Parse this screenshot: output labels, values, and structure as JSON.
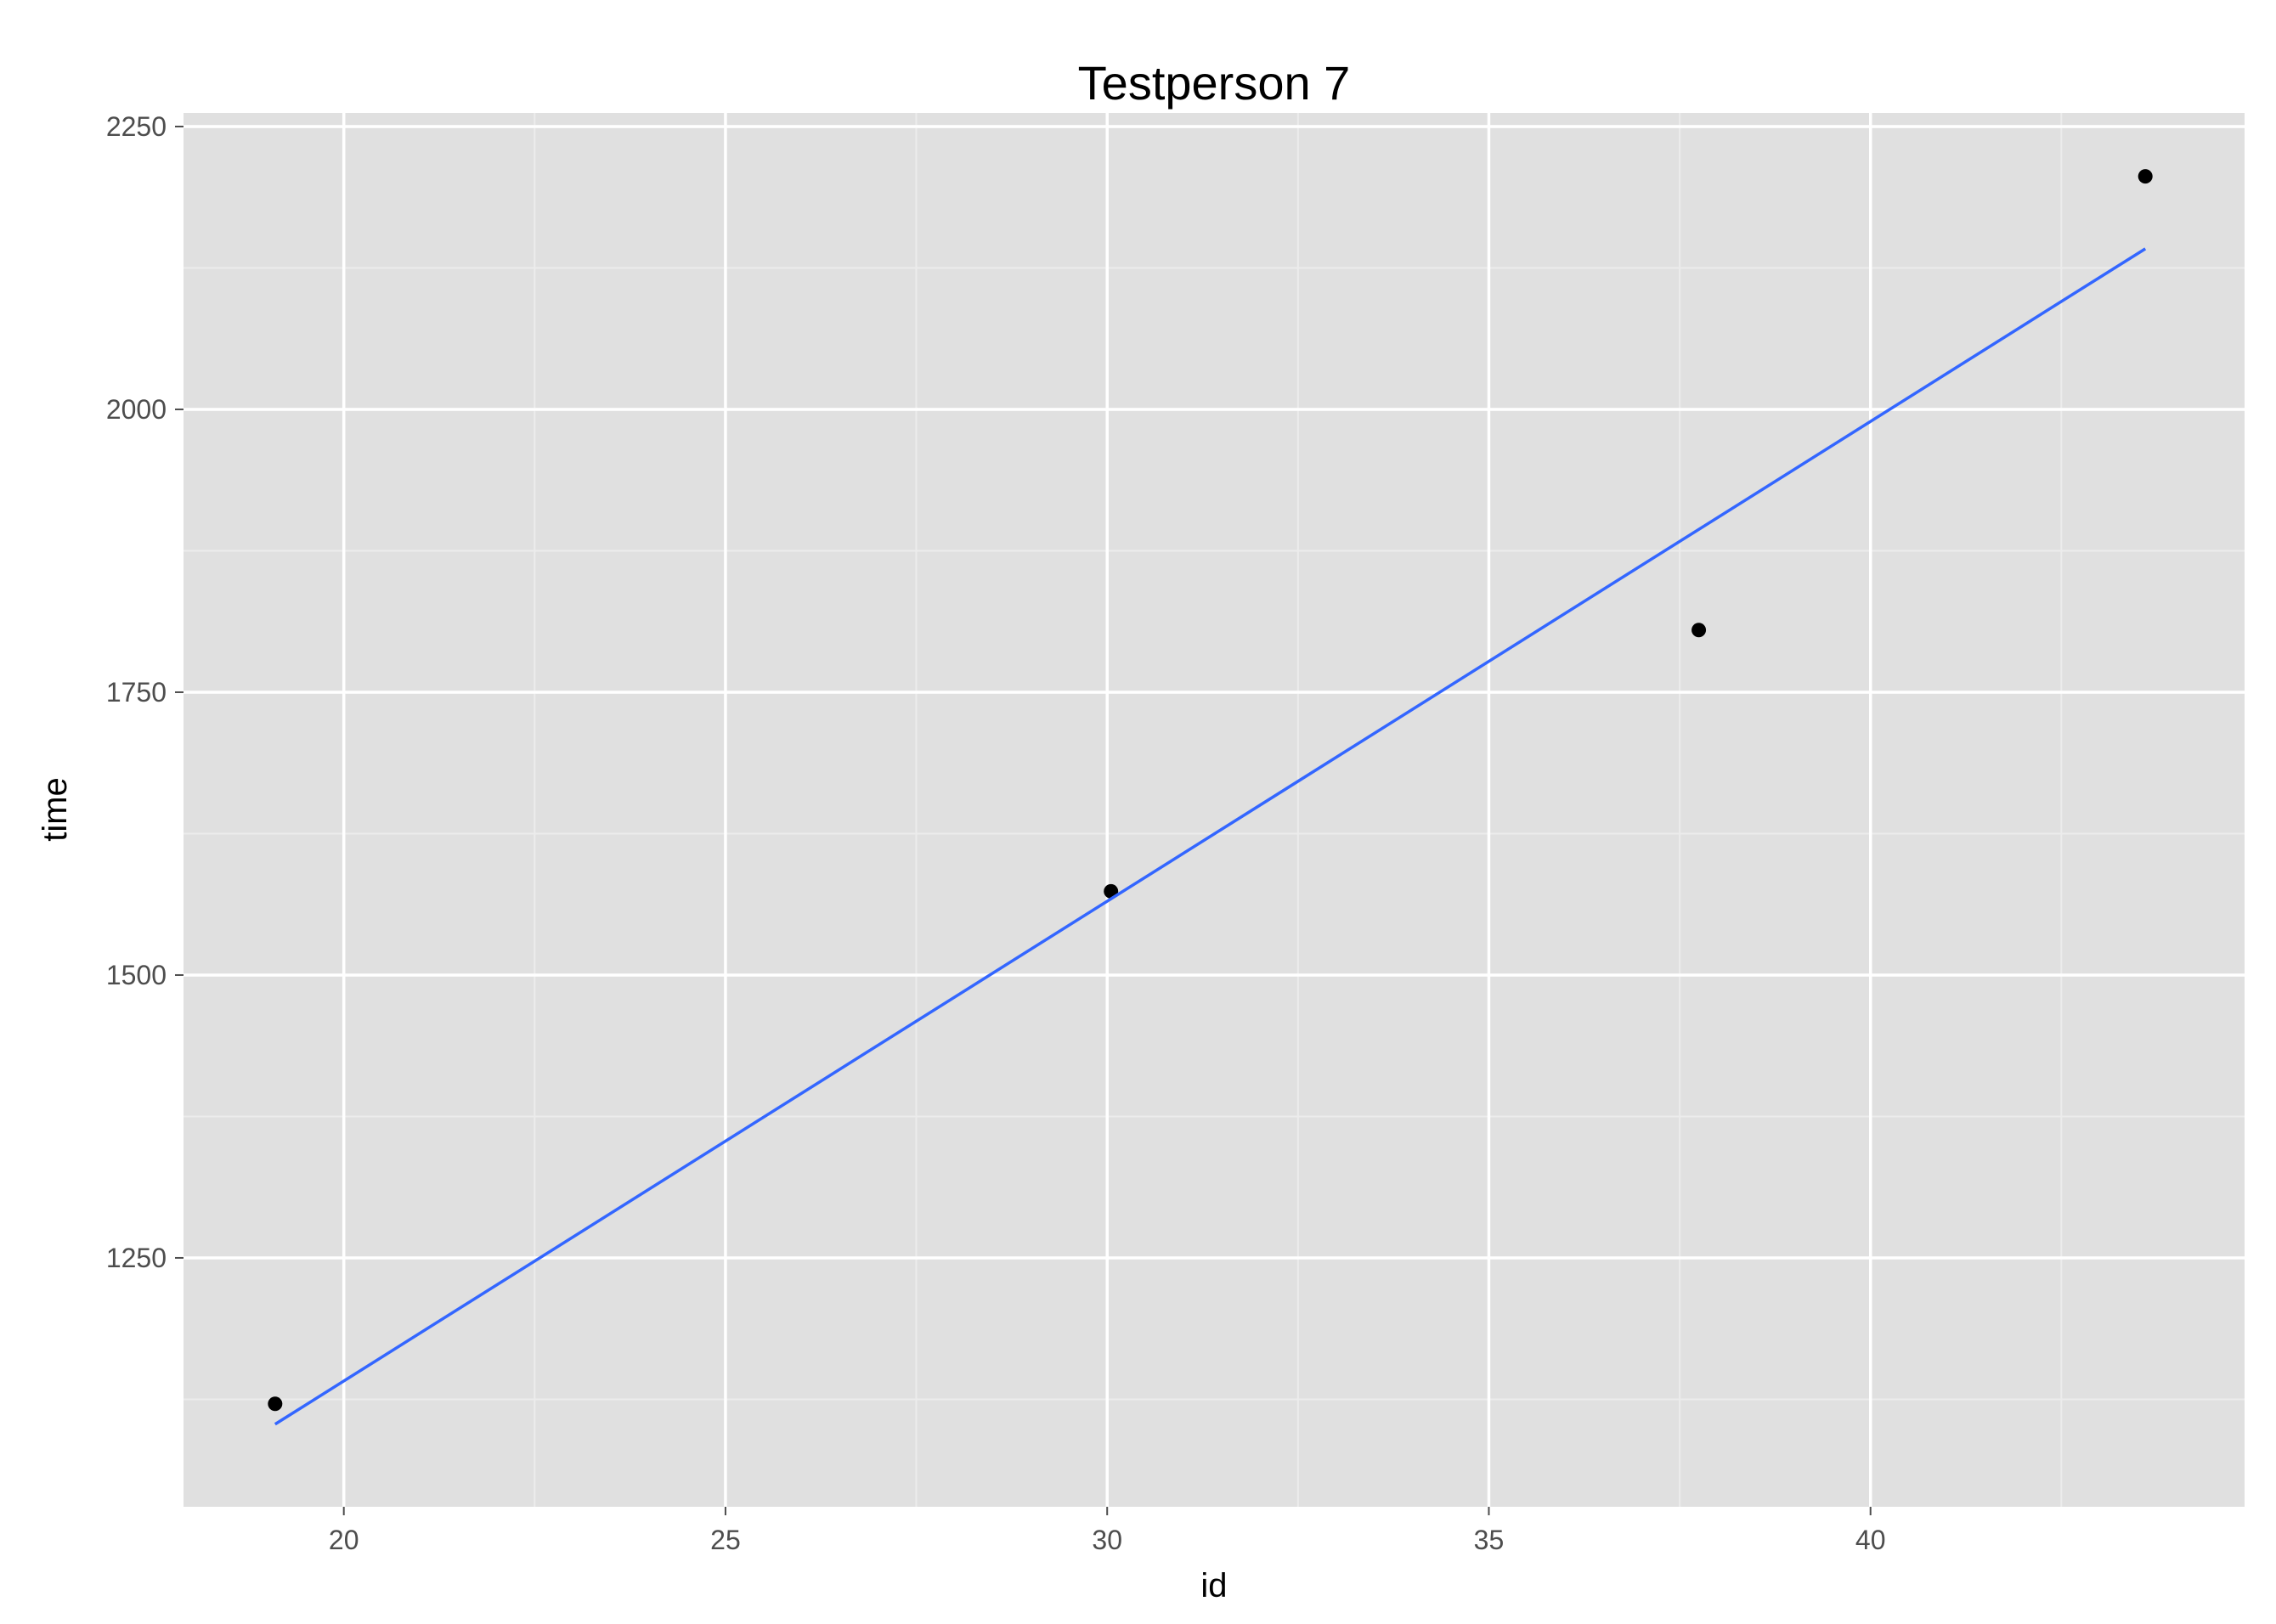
{
  "chart_data": {
    "type": "scatter",
    "title": "Testperson 7",
    "xlabel": "id",
    "ylabel": "time",
    "xlim": [
      17.9,
      44.9
    ],
    "ylim": [
      1030,
      2262
    ],
    "x_ticks": [
      20,
      25,
      30,
      35,
      40
    ],
    "x_tick_labels": [
      "20",
      "25",
      "30",
      "35",
      "40"
    ],
    "x_minor_ticks": [
      22.5,
      27.5,
      32.5,
      37.5,
      42.5
    ],
    "y_ticks": [
      1250,
      1500,
      1750,
      2000,
      2250
    ],
    "y_tick_labels": [
      "1250",
      "1500",
      "1750",
      "2000",
      "2250"
    ],
    "y_minor_ticks": [
      1125,
      1375,
      1625,
      1875,
      2125
    ],
    "grid": true,
    "series": [
      {
        "type": "scatter",
        "color": "#000000",
        "points": [
          {
            "x": 19.1,
            "y": 1121
          },
          {
            "x": 30.05,
            "y": 1574
          },
          {
            "x": 37.75,
            "y": 1805
          },
          {
            "x": 43.6,
            "y": 2206
          }
        ]
      },
      {
        "type": "line",
        "color": "#3366ff",
        "points": [
          {
            "x": 19.1,
            "y": 1103
          },
          {
            "x": 43.6,
            "y": 2142
          }
        ]
      }
    ],
    "panel_background": "#e0e0e0",
    "grid_major_color": "#ffffff",
    "grid_minor_color": "#ececec"
  }
}
